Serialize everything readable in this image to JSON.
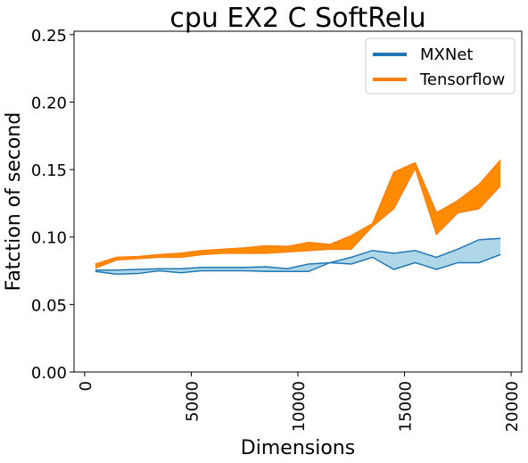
{
  "chart_data": {
    "type": "line",
    "title": "cpu EX2 C SoftRelu",
    "xlabel": "Dimensions",
    "ylabel": "Fatction of second",
    "xlim": [
      -500,
      20500
    ],
    "ylim": [
      0,
      0.2525
    ],
    "xticks": [
      0,
      5000,
      10000,
      15000,
      20000
    ],
    "xtick_labels": [
      "0",
      "5000",
      "10000",
      "15000",
      "20000"
    ],
    "yticks": [
      0.0,
      0.05,
      0.1,
      0.15,
      0.2,
      0.25
    ],
    "ytick_labels": [
      "0.00",
      "0.05",
      "0.10",
      "0.15",
      "0.20",
      "0.25"
    ],
    "grid": false,
    "legend_position": "top-right",
    "x": [
      500,
      1500,
      2500,
      3500,
      4500,
      5500,
      6500,
      7500,
      8500,
      9500,
      10500,
      11500,
      12500,
      13500,
      14500,
      15500,
      16500,
      17500,
      18500,
      19500
    ],
    "series": [
      {
        "name": "MXNet",
        "color": "#1f77b4",
        "fill": "#a6d3e6",
        "lower": [
          0.0745,
          0.0725,
          0.073,
          0.075,
          0.0735,
          0.075,
          0.075,
          0.075,
          0.0745,
          0.0745,
          0.0745,
          0.081,
          0.08,
          0.085,
          0.076,
          0.081,
          0.076,
          0.081,
          0.081,
          0.087
        ],
        "upper": [
          0.0755,
          0.0755,
          0.076,
          0.0765,
          0.0765,
          0.0775,
          0.0775,
          0.0775,
          0.078,
          0.0765,
          0.08,
          0.081,
          0.085,
          0.09,
          0.088,
          0.09,
          0.085,
          0.091,
          0.098,
          0.099
        ]
      },
      {
        "name": "Tensorflow",
        "color": "#ff7f0e",
        "fill": "#ff8c00",
        "lower": [
          0.077,
          0.083,
          0.084,
          0.085,
          0.085,
          0.087,
          0.088,
          0.088,
          0.088,
          0.089,
          0.09,
          0.091,
          0.091,
          0.108,
          0.121,
          0.151,
          0.102,
          0.118,
          0.121,
          0.138
        ],
        "upper": [
          0.08,
          0.085,
          0.0855,
          0.087,
          0.088,
          0.09,
          0.091,
          0.092,
          0.0935,
          0.093,
          0.096,
          0.0945,
          0.101,
          0.11,
          0.148,
          0.155,
          0.118,
          0.127,
          0.139,
          0.157
        ]
      }
    ]
  }
}
